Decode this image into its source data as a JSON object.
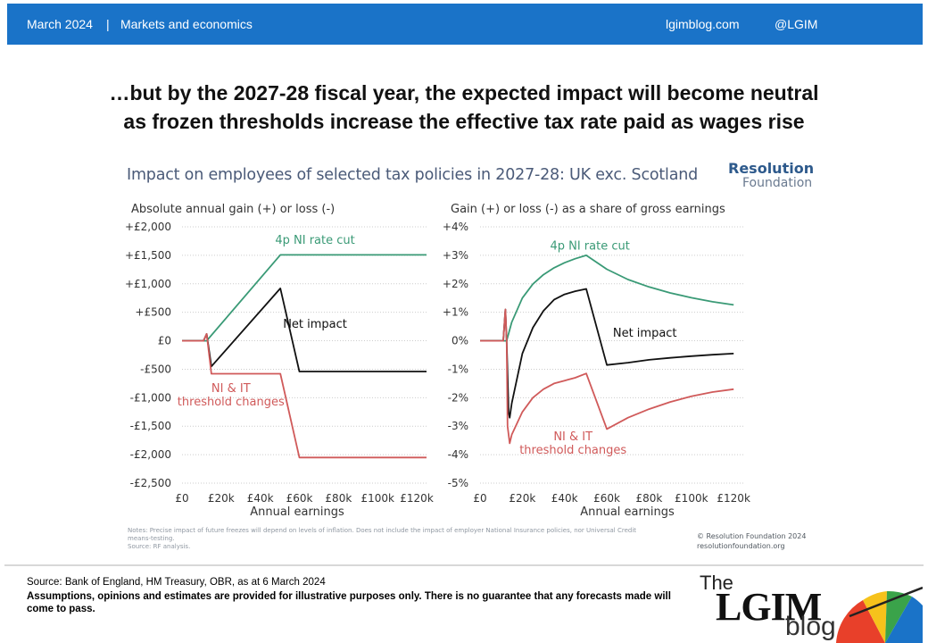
{
  "header": {
    "date": "March 2024",
    "separator": "|",
    "category": "Markets and economics",
    "site": "lgimblog.com",
    "handle": "@LGIM",
    "bg_color": "#1a73c8"
  },
  "slide_title": {
    "line1": "…but by the 2027-28 fiscal year, the expected impact will become neutral",
    "line2": "as frozen thresholds increase the effective tax rate paid as wages rise"
  },
  "chart_title": "Impact on employees of selected tax policies in 2027-28: UK exc. Scotland",
  "brand": {
    "line1": "Resolution",
    "line2": "Foundation"
  },
  "colors": {
    "ni_cut": "#3a9a76",
    "net": "#111111",
    "threshold": "#d05a5a",
    "grid": "#cccccc",
    "axis_text": "#333333"
  },
  "chart_data": [
    {
      "type": "line",
      "title": "Absolute annual gain (+) or loss (-)",
      "xlabel": "Annual earnings",
      "x_ticks": [
        0,
        20000,
        40000,
        60000,
        80000,
        100000,
        120000
      ],
      "x_tick_labels": [
        "£0",
        "£20k",
        "£40k",
        "£60k",
        "£80k",
        "£100k",
        "£120k"
      ],
      "y_ticks": [
        -2500,
        -2000,
        -1500,
        -1000,
        -500,
        0,
        500,
        1000,
        1500,
        2000
      ],
      "y_tick_labels": [
        "-£2,500",
        "-£2,000",
        "-£1,500",
        "-£1,000",
        "-£500",
        "£0",
        "+£500",
        "+£1,000",
        "+£1,500",
        "+£2,000"
      ],
      "xlim": [
        0,
        125000
      ],
      "ylim": [
        -2500,
        2000
      ],
      "grid": true,
      "series": [
        {
          "name": "4p NI rate cut",
          "color": "#3a9a76",
          "x": [
            0,
            12570,
            50270,
            125000
          ],
          "y": [
            0,
            0,
            1508,
            1508
          ]
        },
        {
          "name": "Net impact",
          "color": "#111111",
          "x": [
            0,
            11000,
            12570,
            15000,
            50270,
            60000,
            125000
          ],
          "y": [
            0,
            0,
            120,
            -450,
            920,
            -540,
            -540
          ]
        },
        {
          "name": "NI & IT threshold changes",
          "color": "#d05a5a",
          "x": [
            0,
            11000,
            12570,
            15000,
            50270,
            60000,
            125000
          ],
          "y": [
            0,
            0,
            120,
            -580,
            -580,
            -2050,
            -2050
          ]
        }
      ],
      "labels": [
        {
          "series": 0,
          "lines": [
            "4p NI rate cut"
          ],
          "at_x": 68000,
          "at_y": 1700
        },
        {
          "series": 1,
          "lines": [
            "Net impact"
          ],
          "at_x": 68000,
          "at_y": 230
        },
        {
          "series": 2,
          "lines": [
            "NI & IT",
            "threshold changes"
          ],
          "at_x": 25000,
          "at_y": -900
        }
      ]
    },
    {
      "type": "line",
      "title": "Gain (+) or loss (-) as a share of gross earnings",
      "xlabel": "Annual earnings",
      "x_ticks": [
        0,
        20000,
        40000,
        60000,
        80000,
        100000,
        120000
      ],
      "x_tick_labels": [
        "£0",
        "£20k",
        "£40k",
        "£60k",
        "£80k",
        "£100k",
        "£120k"
      ],
      "y_ticks": [
        -5,
        -4,
        -3,
        -2,
        -1,
        0,
        1,
        2,
        3,
        4
      ],
      "y_tick_labels": [
        "-5%",
        "-4%",
        "-3%",
        "-2%",
        "-1%",
        "0%",
        "+1%",
        "+2%",
        "+3%",
        "+4%"
      ],
      "xlim": [
        0,
        125000
      ],
      "ylim": [
        -5,
        4
      ],
      "grid": true,
      "series": [
        {
          "name": "4p NI rate cut",
          "color": "#3a9a76",
          "x": [
            0,
            12570,
            15000,
            20000,
            25000,
            30000,
            35000,
            40000,
            45000,
            50270,
            60000,
            70000,
            80000,
            90000,
            100000,
            110000,
            120000
          ],
          "y": [
            0,
            0,
            0.65,
            1.5,
            1.99,
            2.32,
            2.56,
            2.74,
            2.88,
            3.0,
            2.51,
            2.15,
            1.89,
            1.68,
            1.51,
            1.37,
            1.26
          ]
        },
        {
          "name": "Net impact",
          "color": "#111111",
          "x": [
            0,
            11000,
            12000,
            12570,
            13500,
            14000,
            15000,
            20000,
            25000,
            30000,
            35000,
            40000,
            45000,
            50270,
            60000,
            70000,
            80000,
            90000,
            100000,
            110000,
            120000
          ],
          "y": [
            0,
            0,
            1.1,
            0,
            -2.5,
            -2.7,
            -2.2,
            -0.45,
            0.46,
            1.05,
            1.44,
            1.63,
            1.74,
            1.82,
            -0.85,
            -0.77,
            -0.67,
            -0.6,
            -0.54,
            -0.49,
            -0.45
          ]
        },
        {
          "name": "NI & IT threshold changes",
          "color": "#d05a5a",
          "x": [
            0,
            11000,
            12000,
            12570,
            13000,
            14000,
            15000,
            20000,
            25000,
            30000,
            35000,
            40000,
            45000,
            50270,
            60000,
            70000,
            80000,
            90000,
            100000,
            110000,
            120000
          ],
          "y": [
            0,
            0,
            1.1,
            0,
            -3.0,
            -3.6,
            -3.3,
            -2.5,
            -2.0,
            -1.7,
            -1.5,
            -1.4,
            -1.3,
            -1.15,
            -3.1,
            -2.7,
            -2.4,
            -2.15,
            -1.95,
            -1.8,
            -1.7
          ]
        }
      ],
      "labels": [
        {
          "series": 0,
          "lines": [
            "4p NI rate cut"
          ],
          "at_x": 52000,
          "at_y": 3.2
        },
        {
          "series": 1,
          "lines": [
            "Net impact"
          ],
          "at_x": 78000,
          "at_y": 0.15
        },
        {
          "series": 2,
          "lines": [
            "NI & IT",
            "threshold changes"
          ],
          "at_x": 44000,
          "at_y": -3.5
        }
      ]
    }
  ],
  "notes": {
    "line1": "Notes: Precise impact of future freezes will depend on levels of inflation. Does not include the impact of employer National Insurance policies, nor Universal Credit",
    "line2": "means-testing.",
    "line3": "Source: RF analysis."
  },
  "copyright": {
    "line1": "© Resolution Foundation 2024",
    "line2": "resolutionfoundation.org"
  },
  "footer": {
    "source": "Source: Bank of England, HM Treasury, OBR, as at 6 March 2024",
    "assumptions": "Assumptions, opinions and estimates are provided for illustrative purposes only. There is no guarantee that any forecasts made will come to pass."
  },
  "logo": {
    "the": "The",
    "name": "LGIM",
    "blog": "blog"
  }
}
